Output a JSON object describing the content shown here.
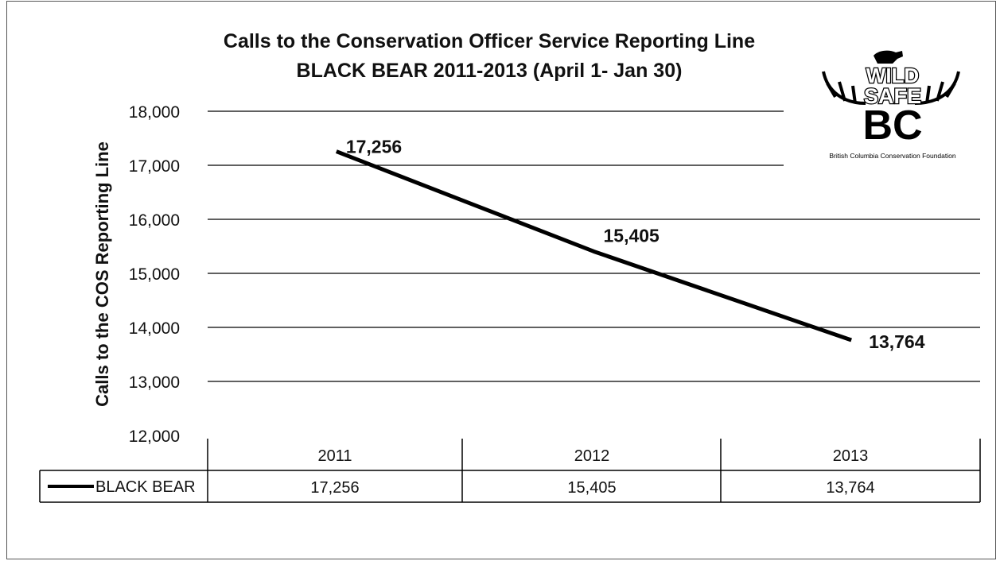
{
  "chart_data": {
    "type": "line",
    "title": "Calls to the Conservation Officer Service Reporting Line",
    "subtitle": "BLACK BEAR 2011-2013 (April 1- Jan 30)",
    "xlabel": "",
    "ylabel": "Calls to the COS Reporting Line",
    "categories": [
      "2011",
      "2012",
      "2013"
    ],
    "series": [
      {
        "name": "BLACK BEAR",
        "values": [
          17256,
          15405,
          13764
        ],
        "color": "#000000"
      }
    ],
    "data_labels": [
      "17,256",
      "15,405",
      "13,764"
    ],
    "ylim": [
      12000,
      18000
    ],
    "yticks": [
      12000,
      13000,
      14000,
      15000,
      16000,
      17000,
      18000
    ],
    "ytick_labels": [
      "12,000",
      "13,000",
      "14,000",
      "15,000",
      "16,000",
      "17,000",
      "18,000"
    ],
    "grid": true,
    "legend": "data-table",
    "data_table": {
      "header": [
        "2011",
        "2012",
        "2013"
      ],
      "row_label": "BLACK BEAR",
      "row_values": [
        "17,256",
        "15,405",
        "13,764"
      ]
    }
  },
  "logo": {
    "name": "wild-safe-bc-logo",
    "line1": "WILD",
    "line2": "SAFE",
    "line3": "BC",
    "caption": "British Columbia Conservation Foundation"
  }
}
